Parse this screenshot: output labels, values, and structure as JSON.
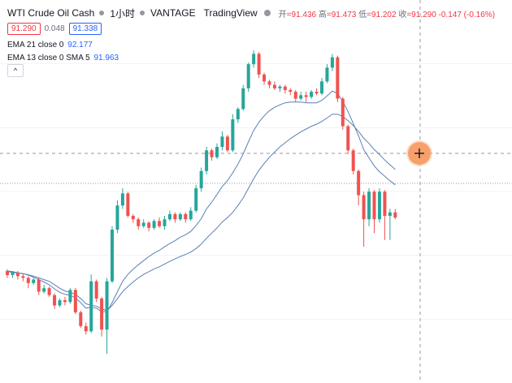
{
  "header": {
    "symbol": "WTI Crude Oil Cash",
    "interval": "1小时",
    "broker": "VANTAGE",
    "platform": "TradingView",
    "open_label": "开",
    "open_value": "=91.436",
    "high_label": "高",
    "high_value": "=91.473",
    "low_label": "低",
    "low_value": "=91.202",
    "close_label": "收",
    "close_value": "=91.290",
    "change": "-0.147 (-0.16%)"
  },
  "prices": {
    "sell": "91.290",
    "spread": "0.048",
    "buy": "91.338"
  },
  "indicators": [
    {
      "label": "EMA 21 close 0",
      "value": "92.177"
    },
    {
      "label": "EMA 13 close 0 SMA 5",
      "value": "91.963"
    }
  ],
  "collapse_icon": "chevron-up-icon",
  "crosshair_button_icon": "plus-icon",
  "colors": {
    "up": "#26a69a",
    "down": "#ef5350",
    "ma": "#5b7fb5",
    "crosshair_button": "#f7a06a",
    "sell": "#f23645",
    "buy": "#2962ff"
  },
  "chart_data": {
    "type": "candlestick",
    "candles": [
      [
        0.3,
        0.18,
        0.35,
        0.1
      ],
      [
        0.18,
        0.25,
        0.3,
        0.1
      ],
      [
        0.25,
        0.15,
        0.3,
        0.05
      ],
      [
        0.15,
        0.1,
        0.22,
        0.0
      ],
      [
        0.1,
        -0.05,
        0.15,
        -0.2
      ],
      [
        -0.05,
        0.05,
        0.1,
        -0.1
      ],
      [
        0.05,
        -0.3,
        0.1,
        -0.4
      ],
      [
        -0.3,
        -0.2,
        -0.1,
        -0.35
      ],
      [
        -0.2,
        -0.4,
        -0.15,
        -0.45
      ],
      [
        -0.4,
        -0.7,
        -0.35,
        -0.8
      ],
      [
        -0.7,
        -0.55,
        -0.5,
        -0.75
      ],
      [
        -0.55,
        -0.6,
        -0.45,
        -0.7
      ],
      [
        -0.6,
        -0.25,
        -0.2,
        -0.65
      ],
      [
        -0.25,
        -0.9,
        -0.2,
        -0.95
      ],
      [
        -0.9,
        -1.3,
        -0.85,
        -1.35
      ],
      [
        -1.3,
        -1.45,
        -1.2,
        -1.55
      ],
      [
        -1.45,
        0.0,
        0.2,
        -1.5
      ],
      [
        0.0,
        -0.5,
        0.05,
        -0.6
      ],
      [
        -0.5,
        -1.4,
        -0.45,
        -1.6
      ],
      [
        -1.4,
        0.0,
        0.1,
        -2.1
      ],
      [
        0.0,
        1.5,
        1.6,
        -0.05
      ],
      [
        1.5,
        2.2,
        2.35,
        1.4
      ],
      [
        2.2,
        2.55,
        2.7,
        2.1
      ],
      [
        2.55,
        1.9,
        2.6,
        1.85
      ],
      [
        1.9,
        1.8,
        1.95,
        1.7
      ],
      [
        1.8,
        1.6,
        1.85,
        1.5
      ],
      [
        1.6,
        1.7,
        1.8,
        1.55
      ],
      [
        1.7,
        1.55,
        1.75,
        1.45
      ],
      [
        1.55,
        1.75,
        1.8,
        1.5
      ],
      [
        1.75,
        1.6,
        1.85,
        1.55
      ],
      [
        1.6,
        1.8,
        1.9,
        1.5
      ],
      [
        1.8,
        1.95,
        2.05,
        1.75
      ],
      [
        1.95,
        1.8,
        2.0,
        1.7
      ],
      [
        1.8,
        1.95,
        2.0,
        1.75
      ],
      [
        1.95,
        1.8,
        2.0,
        1.7
      ],
      [
        1.8,
        2.05,
        2.15,
        1.75
      ],
      [
        2.05,
        2.7,
        2.8,
        2.0
      ],
      [
        2.7,
        3.2,
        3.3,
        2.6
      ],
      [
        3.2,
        3.8,
        3.9,
        3.1
      ],
      [
        3.8,
        3.6,
        3.85,
        3.5
      ],
      [
        3.6,
        3.9,
        4.0,
        3.55
      ],
      [
        3.9,
        4.2,
        4.35,
        3.8
      ],
      [
        4.2,
        3.8,
        4.25,
        3.75
      ],
      [
        3.8,
        4.7,
        4.85,
        3.75
      ],
      [
        4.7,
        5.0,
        5.05,
        4.6
      ],
      [
        5.0,
        5.6,
        5.7,
        4.95
      ],
      [
        5.6,
        6.3,
        6.35,
        5.5
      ],
      [
        6.3,
        6.6,
        6.7,
        6.2
      ],
      [
        6.6,
        6.0,
        6.65,
        5.9
      ],
      [
        6.0,
        5.8,
        6.05,
        5.7
      ],
      [
        5.8,
        5.7,
        5.85,
        5.6
      ],
      [
        5.7,
        5.6,
        5.8,
        5.55
      ],
      [
        5.6,
        5.65,
        5.7,
        5.5
      ],
      [
        5.65,
        5.55,
        5.7,
        5.45
      ],
      [
        5.55,
        5.5,
        5.6,
        5.4
      ],
      [
        5.5,
        5.3,
        5.55,
        5.2
      ],
      [
        5.3,
        5.4,
        5.5,
        5.25
      ],
      [
        5.4,
        5.35,
        5.5,
        5.2
      ],
      [
        5.35,
        5.5,
        5.55,
        5.3
      ],
      [
        5.5,
        5.45,
        5.6,
        5.4
      ],
      [
        5.45,
        5.8,
        5.9,
        5.4
      ],
      [
        5.8,
        6.2,
        6.3,
        5.75
      ],
      [
        6.2,
        6.5,
        6.6,
        6.1
      ],
      [
        6.5,
        5.3,
        6.55,
        5.2
      ],
      [
        5.3,
        4.5,
        5.35,
        4.4
      ],
      [
        4.5,
        3.8,
        4.55,
        3.7
      ],
      [
        3.8,
        3.2,
        3.85,
        3.1
      ],
      [
        3.2,
        2.5,
        3.25,
        2.2
      ],
      [
        2.5,
        1.8,
        2.6,
        1.0
      ],
      [
        1.8,
        2.6,
        2.7,
        1.6
      ],
      [
        2.6,
        1.8,
        2.65,
        1.4
      ],
      [
        1.8,
        2.6,
        2.7,
        1.7
      ],
      [
        2.6,
        1.9,
        2.65,
        1.2
      ],
      [
        1.9,
        2.0,
        2.1,
        1.2
      ],
      [
        2.0,
        1.85,
        2.1,
        1.8
      ]
    ],
    "ema21": [
      0.28,
      0.26,
      0.24,
      0.22,
      0.19,
      0.15,
      0.1,
      0.05,
      0.0,
      -0.1,
      -0.2,
      -0.28,
      -0.32,
      -0.38,
      -0.5,
      -0.65,
      -0.7,
      -0.72,
      -0.8,
      -0.85,
      -0.7,
      -0.5,
      -0.3,
      -0.15,
      -0.02,
      0.1,
      0.2,
      0.28,
      0.36,
      0.42,
      0.5,
      0.58,
      0.65,
      0.72,
      0.78,
      0.85,
      0.95,
      1.08,
      1.25,
      1.4,
      1.55,
      1.72,
      1.85,
      2.0,
      2.2,
      2.42,
      2.7,
      2.98,
      3.22,
      3.42,
      3.6,
      3.75,
      3.9,
      4.02,
      4.14,
      4.24,
      4.34,
      4.42,
      4.5,
      4.56,
      4.64,
      4.74,
      4.85,
      4.85,
      4.78,
      4.66,
      4.52,
      4.35,
      4.15,
      4.0,
      3.82,
      3.68,
      3.52,
      3.38,
      3.25
    ],
    "ema13": [
      0.3,
      0.28,
      0.25,
      0.22,
      0.18,
      0.12,
      0.05,
      -0.02,
      -0.1,
      -0.22,
      -0.32,
      -0.38,
      -0.4,
      -0.48,
      -0.62,
      -0.78,
      -0.75,
      -0.78,
      -0.88,
      -0.88,
      -0.62,
      -0.3,
      0.0,
      0.2,
      0.35,
      0.48,
      0.6,
      0.72,
      0.82,
      0.9,
      1.0,
      1.1,
      1.18,
      1.28,
      1.35,
      1.45,
      1.62,
      1.82,
      2.1,
      2.3,
      2.52,
      2.75,
      2.92,
      3.15,
      3.4,
      3.7,
      4.05,
      4.38,
      4.62,
      4.8,
      4.95,
      5.05,
      5.12,
      5.18,
      5.2,
      5.2,
      5.2,
      5.18,
      5.18,
      5.18,
      5.25,
      5.38,
      5.52,
      5.45,
      5.22,
      4.92,
      4.58,
      4.22,
      3.82,
      3.58,
      3.35,
      3.18,
      3.05,
      2.92,
      2.8
    ]
  }
}
